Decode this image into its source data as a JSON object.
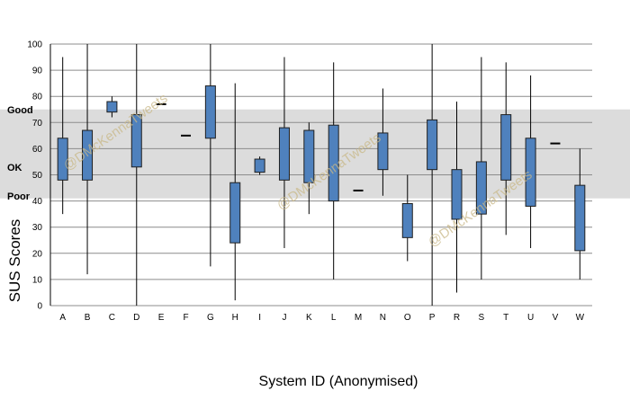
{
  "chart_data": {
    "type": "box",
    "xlabel": "System ID (Anonymised)",
    "ylabel": "SUS Scores",
    "ylim": [
      0,
      100
    ],
    "yticks": [
      0,
      10,
      20,
      30,
      40,
      50,
      60,
      70,
      80,
      90,
      100
    ],
    "grid": true,
    "band": {
      "from": 41,
      "to": 75
    },
    "band_labels": [
      {
        "text": "Good",
        "value": 75
      },
      {
        "text": "OK",
        "value": 53
      },
      {
        "text": "Poor",
        "value": 42
      }
    ],
    "watermark": "@DMcKennaTweets",
    "colors": {
      "box_fill": "#4f81bd",
      "box_stroke": "#1f1f1f",
      "band": "#dcdcdc",
      "grid": "#8c8c8c"
    },
    "categories": [
      "A",
      "B",
      "C",
      "D",
      "E",
      "F",
      "G",
      "H",
      "I",
      "J",
      "K",
      "L",
      "M",
      "N",
      "O",
      "P",
      "R",
      "S",
      "T",
      "U",
      "V",
      "W"
    ],
    "boxes": [
      {
        "min": 35,
        "q1": 48,
        "q3": 64,
        "max": 95
      },
      {
        "min": 12,
        "q1": 48,
        "q3": 67,
        "max": 100
      },
      {
        "min": 72,
        "q1": 74,
        "q3": 78,
        "max": 80
      },
      {
        "min": 0,
        "q1": 53,
        "q3": 73,
        "max": 100
      },
      {
        "min": 77,
        "q1": 77,
        "q3": 77,
        "max": 77
      },
      {
        "min": 65,
        "q1": 65,
        "q3": 65,
        "max": 65
      },
      {
        "min": 15,
        "q1": 64,
        "q3": 84,
        "max": 100
      },
      {
        "min": 2,
        "q1": 24,
        "q3": 47,
        "max": 85
      },
      {
        "min": 50,
        "q1": 51,
        "q3": 56,
        "max": 57
      },
      {
        "min": 22,
        "q1": 48,
        "q3": 68,
        "max": 95
      },
      {
        "min": 35,
        "q1": 47,
        "q3": 67,
        "max": 70
      },
      {
        "min": 10,
        "q1": 40,
        "q3": 69,
        "max": 93
      },
      {
        "min": 44,
        "q1": 44,
        "q3": 44,
        "max": 44
      },
      {
        "min": 42,
        "q1": 52,
        "q3": 66,
        "max": 83
      },
      {
        "min": 17,
        "q1": 26,
        "q3": 39,
        "max": 50
      },
      {
        "min": 0,
        "q1": 52,
        "q3": 71,
        "max": 100
      },
      {
        "min": 5,
        "q1": 33,
        "q3": 52,
        "max": 78
      },
      {
        "min": 10,
        "q1": 35,
        "q3": 55,
        "max": 95
      },
      {
        "min": 27,
        "q1": 48,
        "q3": 73,
        "max": 93
      },
      {
        "min": 22,
        "q1": 38,
        "q3": 64,
        "max": 88
      },
      {
        "min": 62,
        "q1": 62,
        "q3": 62,
        "max": 62
      },
      {
        "min": 10,
        "q1": 21,
        "q3": 46,
        "max": 60
      }
    ]
  }
}
